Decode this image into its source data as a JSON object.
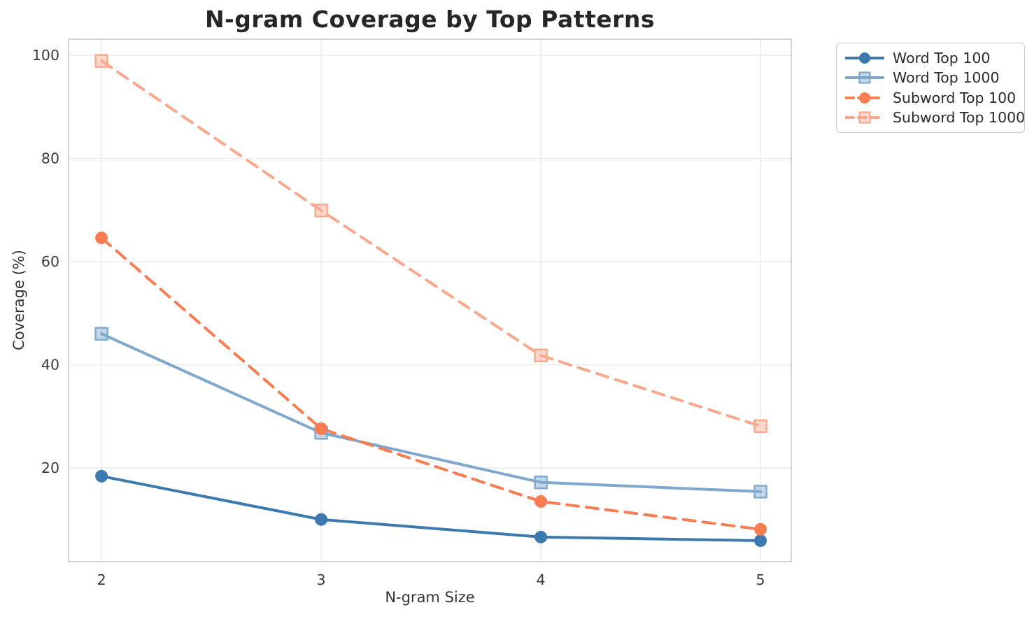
{
  "chart": {
    "title": "N-gram Coverage by Top Patterns",
    "xlabel": "N-gram Size",
    "ylabel": "Coverage (%)"
  },
  "chart_data": {
    "type": "line",
    "title": "N-gram Coverage by Top Patterns",
    "xlabel": "N-gram Size",
    "ylabel": "Coverage (%)",
    "x": [
      2,
      3,
      4,
      5
    ],
    "x_tick_labels": [
      "2",
      "3",
      "4",
      "5"
    ],
    "y_ticks": [
      20,
      40,
      60,
      80,
      100
    ],
    "y_tick_labels": [
      "20",
      "40",
      "60",
      "80",
      "100"
    ],
    "xlim": [
      1.85,
      5.14
    ],
    "ylim": [
      1.83,
      103.12
    ],
    "grid": true,
    "legend_position": "outside-upper-right",
    "series": [
      {
        "name": "Word Top 100",
        "values": [
          18.4,
          10.0,
          6.6,
          5.9
        ],
        "color": "#3b79ae",
        "line_style": "solid",
        "marker": "circle"
      },
      {
        "name": "Word Top 1000",
        "values": [
          46.0,
          26.8,
          17.2,
          15.4
        ],
        "color": "#7fa8ce",
        "line_style": "solid",
        "marker": "square"
      },
      {
        "name": "Subword Top 100",
        "values": [
          64.6,
          27.6,
          13.5,
          8.1
        ],
        "color": "#f97c52",
        "line_style": "dashed",
        "marker": "circle"
      },
      {
        "name": "Subword Top 1000",
        "values": [
          98.9,
          69.9,
          41.8,
          28.1
        ],
        "color": "#f9a88d",
        "line_style": "dashed",
        "marker": "square"
      }
    ]
  },
  "colors": {
    "grid": "#ececec",
    "spine": "#cfcfcf",
    "title_text": "#262626",
    "tick_text": "#3a3a3a",
    "background": "#ffffff"
  }
}
